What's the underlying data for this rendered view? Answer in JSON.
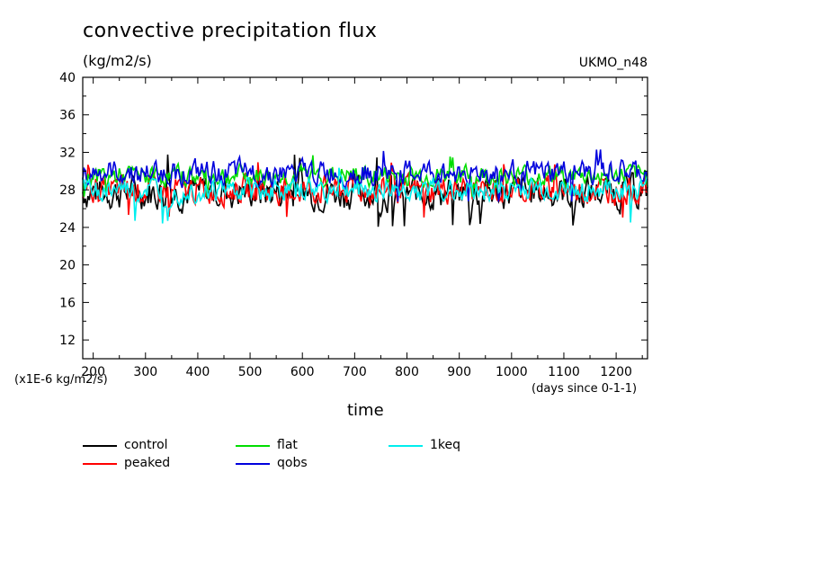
{
  "header": {
    "title": "convective precipitation flux",
    "units": "(kg/m2/s)",
    "model": "UKMO_n48",
    "yscale": "(x1E-6 kg/m2/s)",
    "xunits": "(days since 0-1-1)",
    "xlabel": "time"
  },
  "chart_data": {
    "type": "line",
    "title": "convective precipitation flux",
    "xlabel": "time",
    "ylabel": "(kg/m2/s)",
    "xlim": [
      180,
      1260
    ],
    "ylim": [
      10,
      40
    ],
    "xticks": [
      200,
      300,
      400,
      500,
      600,
      700,
      800,
      900,
      1000,
      1100,
      1200
    ],
    "yticks": [
      12,
      16,
      20,
      24,
      28,
      32,
      36,
      40
    ],
    "grid": false,
    "legend_position": "bottom",
    "series": [
      {
        "name": "control",
        "color": "#000000",
        "mean": 27.8,
        "min": 24.0,
        "max": 31.8
      },
      {
        "name": "peaked",
        "color": "#ff0000",
        "mean": 28.0,
        "min": 25.0,
        "max": 31.0
      },
      {
        "name": "flat",
        "color": "#00dd00",
        "mean": 29.5,
        "min": 27.0,
        "max": 31.8
      },
      {
        "name": "qobs",
        "color": "#0000dd",
        "mean": 29.8,
        "min": 26.5,
        "max": 32.5
      },
      {
        "name": "1keq",
        "color": "#00eeee",
        "mean": 28.0,
        "min": 24.4,
        "max": 30.5
      }
    ]
  }
}
